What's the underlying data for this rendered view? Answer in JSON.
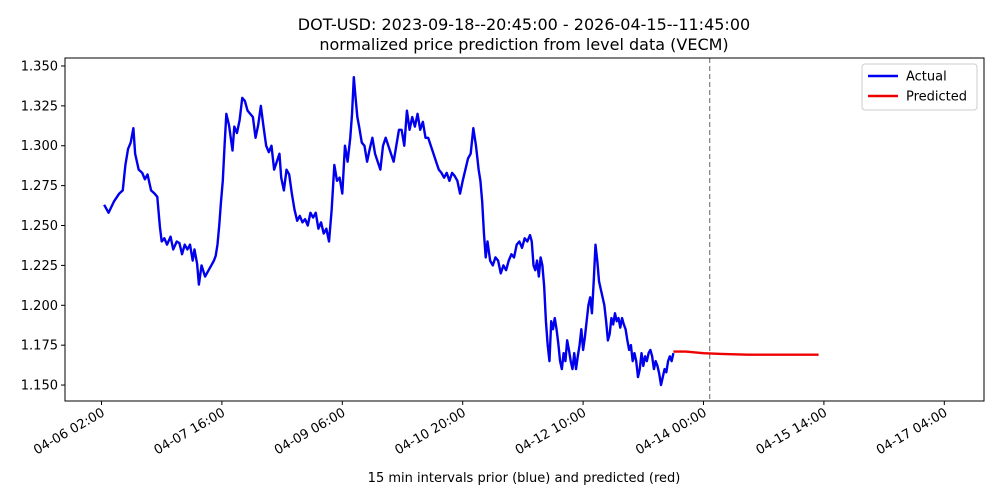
{
  "chart_data": {
    "type": "line",
    "title": "DOT-USD: 2023-09-18--20:45:00 - 2026-04-15--11:45:00",
    "subtitle": "normalized price prediction from level data (VECM)",
    "xlabel": "15 min intervals prior (blue) and predicted (red)",
    "ylabel": "",
    "ylim": [
      1.14,
      1.355
    ],
    "xlim": [
      -6,
      816
    ],
    "forecast_start_index": 687,
    "y_ticks": [
      1.15,
      1.175,
      1.2,
      1.225,
      1.25,
      1.275,
      1.3,
      1.325,
      1.35
    ],
    "y_tick_labels": [
      "1.150",
      "1.175",
      "1.200",
      "1.225",
      "1.250",
      "1.275",
      "1.300",
      "1.325",
      "1.350"
    ],
    "x_ticks": [
      {
        "index": 0,
        "label": "04-06 02:00"
      },
      {
        "index": 136,
        "label": "04-07 16:00"
      },
      {
        "index": 272,
        "label": "04-09 06:00"
      },
      {
        "index": 408,
        "label": "04-10 20:00"
      },
      {
        "index": 544,
        "label": "04-12 10:00"
      },
      {
        "index": 680,
        "label": "04-14 00:00"
      },
      {
        "index": 816,
        "label": "04-15 14:00"
      },
      {
        "index": 952,
        "label": "04-17 04:00"
      }
    ],
    "grid": false,
    "legend_position": "top-right",
    "series": [
      {
        "name": "Actual",
        "color": "#0000ee",
        "points": [
          [
            3,
            1.263
          ],
          [
            8,
            1.258
          ],
          [
            14,
            1.265
          ],
          [
            20,
            1.27
          ],
          [
            24,
            1.272
          ],
          [
            27,
            1.288
          ],
          [
            30,
            1.298
          ],
          [
            33,
            1.302
          ],
          [
            36,
            1.311
          ],
          [
            38,
            1.295
          ],
          [
            42,
            1.285
          ],
          [
            46,
            1.283
          ],
          [
            49,
            1.279
          ],
          [
            52,
            1.282
          ],
          [
            56,
            1.272
          ],
          [
            60,
            1.27
          ],
          [
            63,
            1.268
          ],
          [
            66,
            1.249
          ],
          [
            68,
            1.24
          ],
          [
            71,
            1.242
          ],
          [
            74,
            1.238
          ],
          [
            78,
            1.243
          ],
          [
            81,
            1.235
          ],
          [
            85,
            1.24
          ],
          [
            88,
            1.239
          ],
          [
            91,
            1.232
          ],
          [
            94,
            1.238
          ],
          [
            97,
            1.235
          ],
          [
            100,
            1.238
          ],
          [
            103,
            1.228
          ],
          [
            105,
            1.235
          ],
          [
            108,
            1.226
          ],
          [
            110,
            1.213
          ],
          [
            113,
            1.225
          ],
          [
            117,
            1.218
          ],
          [
            121,
            1.222
          ],
          [
            124,
            1.225
          ],
          [
            127,
            1.228
          ],
          [
            129,
            1.231
          ],
          [
            131,
            1.238
          ],
          [
            133,
            1.25
          ],
          [
            135,
            1.265
          ],
          [
            137,
            1.278
          ],
          [
            139,
            1.3
          ],
          [
            141,
            1.32
          ],
          [
            144,
            1.313
          ],
          [
            146,
            1.305
          ],
          [
            148,
            1.297
          ],
          [
            150,
            1.312
          ],
          [
            153,
            1.308
          ],
          [
            156,
            1.316
          ],
          [
            159,
            1.33
          ],
          [
            162,
            1.328
          ],
          [
            165,
            1.322
          ],
          [
            168,
            1.32
          ],
          [
            171,
            1.318
          ],
          [
            174,
            1.305
          ],
          [
            177,
            1.313
          ],
          [
            180,
            1.325
          ],
          [
            183,
            1.312
          ],
          [
            186,
            1.3
          ],
          [
            189,
            1.296
          ],
          [
            192,
            1.3
          ],
          [
            195,
            1.285
          ],
          [
            198,
            1.29
          ],
          [
            201,
            1.295
          ],
          [
            203,
            1.28
          ],
          [
            206,
            1.272
          ],
          [
            209,
            1.285
          ],
          [
            212,
            1.282
          ],
          [
            215,
            1.27
          ],
          [
            218,
            1.26
          ],
          [
            221,
            1.253
          ],
          [
            224,
            1.256
          ],
          [
            227,
            1.252
          ],
          [
            230,
            1.254
          ],
          [
            233,
            1.25
          ],
          [
            236,
            1.258
          ],
          [
            239,
            1.255
          ],
          [
            242,
            1.258
          ],
          [
            245,
            1.248
          ],
          [
            248,
            1.252
          ],
          [
            251,
            1.245
          ],
          [
            254,
            1.248
          ],
          [
            257,
            1.24
          ],
          [
            260,
            1.26
          ],
          [
            263,
            1.288
          ],
          [
            266,
            1.278
          ],
          [
            269,
            1.28
          ],
          [
            272,
            1.27
          ],
          [
            275,
            1.3
          ],
          [
            278,
            1.29
          ],
          [
            281,
            1.305
          ],
          [
            283,
            1.32
          ],
          [
            285,
            1.343
          ],
          [
            287,
            1.33
          ],
          [
            289,
            1.318
          ],
          [
            291,
            1.312
          ],
          [
            294,
            1.302
          ],
          [
            297,
            1.3
          ],
          [
            300,
            1.29
          ],
          [
            303,
            1.298
          ],
          [
            306,
            1.305
          ],
          [
            309,
            1.295
          ],
          [
            312,
            1.29
          ],
          [
            315,
            1.285
          ],
          [
            318,
            1.3
          ],
          [
            321,
            1.305
          ],
          [
            324,
            1.3
          ],
          [
            327,
            1.295
          ],
          [
            330,
            1.29
          ],
          [
            333,
            1.3
          ],
          [
            336,
            1.31
          ],
          [
            339,
            1.31
          ],
          [
            342,
            1.3
          ],
          [
            345,
            1.322
          ],
          [
            348,
            1.31
          ],
          [
            351,
            1.318
          ],
          [
            354,
            1.312
          ],
          [
            357,
            1.32
          ],
          [
            360,
            1.31
          ],
          [
            363,
            1.315
          ],
          [
            366,
            1.305
          ],
          [
            369,
            1.305
          ],
          [
            372,
            1.3
          ],
          [
            375,
            1.295
          ],
          [
            378,
            1.29
          ],
          [
            381,
            1.285
          ],
          [
            384,
            1.283
          ],
          [
            387,
            1.28
          ],
          [
            390,
            1.283
          ],
          [
            393,
            1.278
          ],
          [
            396,
            1.283
          ],
          [
            399,
            1.281
          ],
          [
            402,
            1.278
          ],
          [
            405,
            1.27
          ],
          [
            408,
            1.278
          ],
          [
            411,
            1.285
          ],
          [
            414,
            1.292
          ],
          [
            417,
            1.295
          ],
          [
            420,
            1.311
          ],
          [
            423,
            1.3
          ],
          [
            426,
            1.285
          ],
          [
            428,
            1.278
          ],
          [
            430,
            1.265
          ],
          [
            432,
            1.245
          ],
          [
            434,
            1.23
          ],
          [
            436,
            1.24
          ],
          [
            439,
            1.228
          ],
          [
            442,
            1.225
          ],
          [
            445,
            1.23
          ],
          [
            448,
            1.228
          ],
          [
            451,
            1.22
          ],
          [
            454,
            1.225
          ],
          [
            457,
            1.222
          ],
          [
            460,
            1.228
          ],
          [
            463,
            1.232
          ],
          [
            466,
            1.23
          ],
          [
            469,
            1.238
          ],
          [
            472,
            1.24
          ],
          [
            475,
            1.236
          ],
          [
            478,
            1.242
          ],
          [
            481,
            1.24
          ],
          [
            484,
            1.244
          ],
          [
            486,
            1.24
          ],
          [
            488,
            1.225
          ],
          [
            490,
            1.222
          ],
          [
            492,
            1.228
          ],
          [
            494,
            1.218
          ],
          [
            496,
            1.23
          ],
          [
            498,
            1.225
          ],
          [
            500,
            1.212
          ],
          [
            502,
            1.19
          ],
          [
            504,
            1.175
          ],
          [
            506,
            1.165
          ],
          [
            508,
            1.19
          ],
          [
            510,
            1.185
          ],
          [
            512,
            1.192
          ],
          [
            514,
            1.185
          ],
          [
            516,
            1.176
          ],
          [
            518,
            1.165
          ],
          [
            520,
            1.16
          ],
          [
            522,
            1.17
          ],
          [
            524,
            1.165
          ],
          [
            526,
            1.178
          ],
          [
            528,
            1.172
          ],
          [
            530,
            1.165
          ],
          [
            532,
            1.16
          ],
          [
            534,
            1.17
          ],
          [
            536,
            1.16
          ],
          [
            538,
            1.168
          ],
          [
            540,
            1.175
          ],
          [
            542,
            1.185
          ],
          [
            544,
            1.172
          ],
          [
            546,
            1.18
          ],
          [
            548,
            1.19
          ],
          [
            550,
            1.2
          ],
          [
            552,
            1.205
          ],
          [
            554,
            1.195
          ],
          [
            556,
            1.215
          ],
          [
            558,
            1.238
          ],
          [
            560,
            1.228
          ],
          [
            562,
            1.215
          ],
          [
            564,
            1.21
          ],
          [
            566,
            1.205
          ],
          [
            568,
            1.2
          ],
          [
            570,
            1.19
          ],
          [
            572,
            1.178
          ],
          [
            574,
            1.182
          ],
          [
            576,
            1.192
          ],
          [
            578,
            1.188
          ],
          [
            580,
            1.195
          ],
          [
            582,
            1.19
          ],
          [
            584,
            1.192
          ],
          [
            586,
            1.186
          ],
          [
            588,
            1.192
          ],
          [
            590,
            1.188
          ],
          [
            592,
            1.185
          ],
          [
            594,
            1.178
          ],
          [
            596,
            1.172
          ],
          [
            598,
            1.175
          ],
          [
            600,
            1.165
          ],
          [
            602,
            1.17
          ],
          [
            604,
            1.165
          ],
          [
            606,
            1.155
          ],
          [
            608,
            1.16
          ],
          [
            610,
            1.17
          ],
          [
            612,
            1.162
          ],
          [
            614,
            1.168
          ],
          [
            616,
            1.165
          ],
          [
            618,
            1.17
          ],
          [
            620,
            1.172
          ],
          [
            622,
            1.168
          ],
          [
            624,
            1.16
          ],
          [
            626,
            1.165
          ],
          [
            628,
            1.162
          ],
          [
            630,
            1.157
          ],
          [
            632,
            1.15
          ],
          [
            634,
            1.155
          ],
          [
            636,
            1.16
          ],
          [
            638,
            1.158
          ],
          [
            640,
            1.165
          ],
          [
            642,
            1.168
          ],
          [
            644,
            1.165
          ],
          [
            646,
            1.17
          ]
        ]
      },
      {
        "name": "Predicted",
        "color": "#ee0000",
        "points": [
          [
            646,
            1.171
          ],
          [
            660,
            1.171
          ],
          [
            680,
            1.17
          ],
          [
            700,
            1.1695
          ],
          [
            730,
            1.169
          ],
          [
            760,
            1.169
          ],
          [
            790,
            1.169
          ],
          [
            810,
            1.169
          ]
        ]
      }
    ]
  }
}
